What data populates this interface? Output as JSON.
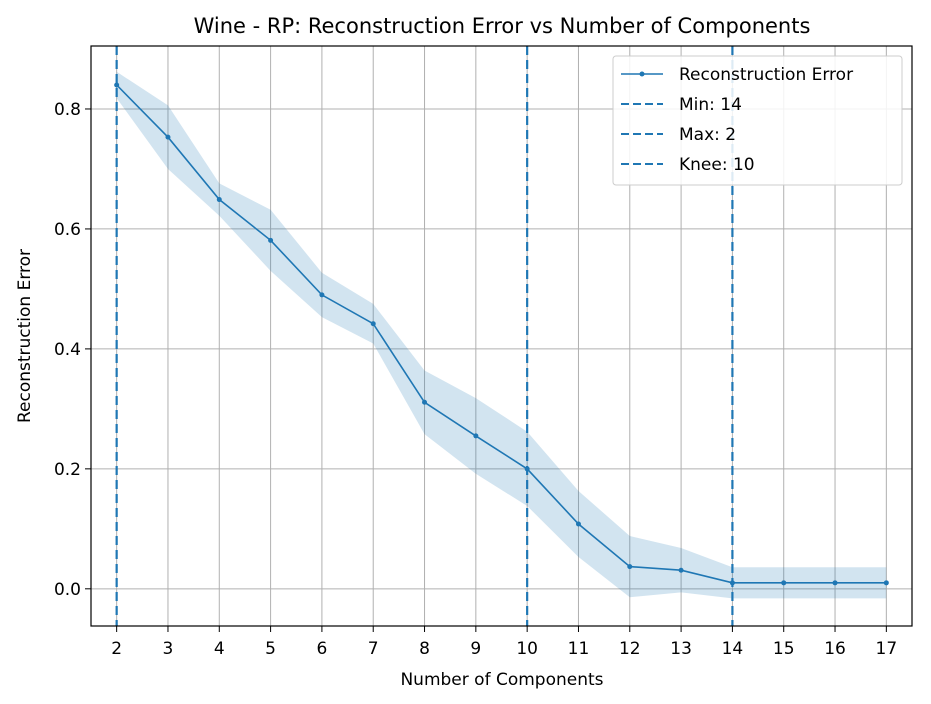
{
  "chart_data": {
    "type": "line",
    "title": "Wine - RP: Reconstruction Error vs Number of Components",
    "xlabel": "Number of Components",
    "ylabel": "Reconstruction Error",
    "xlim": [
      1.5,
      17.5
    ],
    "ylim": [
      -0.062,
      0.905
    ],
    "x_ticks": [
      2,
      3,
      4,
      5,
      6,
      7,
      8,
      9,
      10,
      11,
      12,
      13,
      14,
      15,
      16,
      17
    ],
    "y_ticks": [
      0.0,
      0.2,
      0.4,
      0.6,
      0.8
    ],
    "y_tick_labels": [
      "0.0",
      "0.2",
      "0.4",
      "0.6",
      "0.8"
    ],
    "grid": true,
    "legend_position": "top-right",
    "series": [
      {
        "name": "Reconstruction Error",
        "color": "#1f77b4",
        "x": [
          2,
          3,
          4,
          5,
          6,
          7,
          8,
          9,
          10,
          11,
          12,
          13,
          14,
          15,
          16,
          17
        ],
        "values": [
          0.84,
          0.753,
          0.649,
          0.581,
          0.49,
          0.442,
          0.311,
          0.255,
          0.2,
          0.108,
          0.037,
          0.031,
          0.01,
          0.01,
          0.01,
          0.01
        ],
        "band_upper": [
          0.862,
          0.806,
          0.676,
          0.632,
          0.527,
          0.475,
          0.364,
          0.318,
          0.262,
          0.163,
          0.088,
          0.068,
          0.036,
          0.036,
          0.036,
          0.036
        ],
        "band_lower": [
          0.818,
          0.7,
          0.622,
          0.53,
          0.453,
          0.409,
          0.258,
          0.192,
          0.138,
          0.053,
          -0.014,
          -0.006,
          -0.016,
          -0.016,
          -0.016,
          -0.016
        ],
        "band_color": "#1f77b4"
      }
    ],
    "vlines": [
      {
        "name": "Min: 14",
        "x": 14,
        "color": "#1f77b4",
        "style": "dashed"
      },
      {
        "name": "Max: 2",
        "x": 2,
        "color": "#1f77b4",
        "style": "dashed"
      },
      {
        "name": "Knee: 10",
        "x": 10,
        "color": "#1f77b4",
        "style": "dashed"
      }
    ]
  }
}
